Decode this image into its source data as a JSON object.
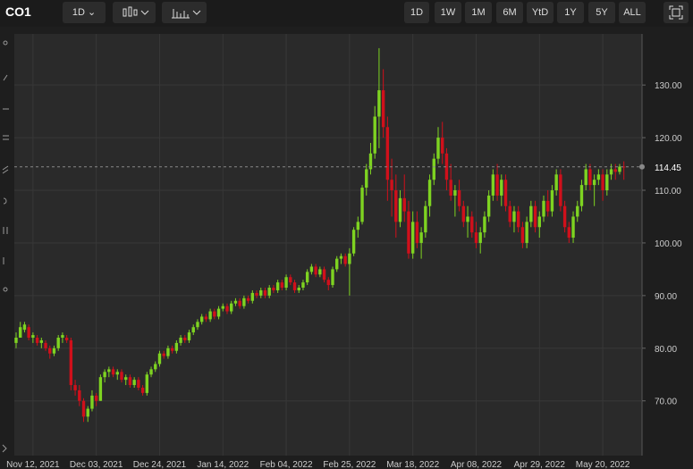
{
  "toolbar": {
    "symbol": "CO1",
    "interval": "1D",
    "ranges": [
      "1D",
      "1W",
      "1M",
      "6M",
      "YtD",
      "1Y",
      "5Y",
      "ALL"
    ]
  },
  "chart_data": {
    "type": "candlestick",
    "up_color": "#7ed321",
    "down_color": "#d0101b",
    "grid": true,
    "ylim": [
      59.6,
      139.7
    ],
    "yticks": [
      {
        "value": 70,
        "label": "70.00"
      },
      {
        "value": 80,
        "label": "80.00"
      },
      {
        "value": 90,
        "label": "90.00"
      },
      {
        "value": 100,
        "label": "100.00"
      },
      {
        "value": 110,
        "label": "110.00"
      },
      {
        "value": 120,
        "label": "120.00"
      },
      {
        "value": 130,
        "label": "130.00"
      }
    ],
    "xticks": [
      {
        "value": 4,
        "label": "Nov 12, 2021"
      },
      {
        "value": 19,
        "label": "Dec 03, 2021"
      },
      {
        "value": 34,
        "label": "Dec 24, 2021"
      },
      {
        "value": 49,
        "label": "Jan 14, 2022"
      },
      {
        "value": 64,
        "label": "Feb 04, 2022"
      },
      {
        "value": 79,
        "label": "Feb 25, 2022"
      },
      {
        "value": 94,
        "label": "Mar 18, 2022"
      },
      {
        "value": 109,
        "label": "Apr 08, 2022"
      },
      {
        "value": 124,
        "label": "Apr 29, 2022"
      },
      {
        "value": 139,
        "label": "May 20, 2022"
      }
    ],
    "ohlc": [
      [
        81,
        83,
        80,
        82
      ],
      [
        82,
        85,
        82,
        84
      ],
      [
        83.5,
        85,
        83,
        84.5
      ],
      [
        84,
        84.5,
        81.5,
        82
      ],
      [
        82,
        83,
        81,
        82.5
      ],
      [
        82,
        82.5,
        80.5,
        81
      ],
      [
        81,
        82,
        80,
        81.5
      ],
      [
        81,
        81.5,
        79.5,
        80
      ],
      [
        80,
        80.5,
        78,
        79
      ],
      [
        79,
        80.5,
        78.5,
        80
      ],
      [
        80,
        82.5,
        79.5,
        82
      ],
      [
        82,
        83,
        81,
        82.5
      ],
      [
        82,
        82.5,
        81,
        81.5
      ],
      [
        81.5,
        82,
        72,
        73
      ],
      [
        73,
        74,
        71,
        72
      ],
      [
        72,
        73,
        69,
        70
      ],
      [
        70,
        70.5,
        66,
        67
      ],
      [
        67,
        69,
        66,
        68.5
      ],
      [
        68.5,
        72,
        68,
        71
      ],
      [
        71,
        71.5,
        69,
        70
      ],
      [
        70,
        75,
        70,
        74.5
      ],
      [
        74.5,
        76,
        73.5,
        75.5
      ],
      [
        75.5,
        76.5,
        74.5,
        76
      ],
      [
        76,
        76.5,
        74.5,
        75
      ],
      [
        75,
        76,
        74,
        75.5
      ],
      [
        75.5,
        76,
        73.5,
        74
      ],
      [
        74,
        75,
        73,
        74.5
      ],
      [
        74.5,
        75,
        72.5,
        73
      ],
      [
        73,
        74.5,
        72.5,
        74
      ],
      [
        74,
        74.5,
        72,
        72.5
      ],
      [
        72.5,
        73,
        71,
        71.5
      ],
      [
        71.5,
        75.5,
        71,
        75
      ],
      [
        75,
        76.5,
        74.5,
        76
      ],
      [
        76,
        77.5,
        75.5,
        77
      ],
      [
        77,
        79.5,
        76.5,
        79
      ],
      [
        79,
        79.5,
        78,
        78.5
      ],
      [
        78.5,
        80.5,
        78,
        80
      ],
      [
        80,
        80.5,
        79,
        79.5
      ],
      [
        79.5,
        81.5,
        79,
        81
      ],
      [
        81,
        82.5,
        80.5,
        82
      ],
      [
        82,
        82.5,
        81,
        81.5
      ],
      [
        81.5,
        83.5,
        81,
        83
      ],
      [
        83,
        84.5,
        82.5,
        84
      ],
      [
        84,
        85.5,
        83.5,
        85
      ],
      [
        85,
        86.5,
        84.5,
        86
      ],
      [
        86,
        86.5,
        85,
        85.5
      ],
      [
        85.5,
        87.5,
        85,
        87
      ],
      [
        87,
        87.5,
        85.5,
        86
      ],
      [
        86,
        88,
        85.5,
        87.5
      ],
      [
        87.5,
        88.5,
        87,
        88
      ],
      [
        88,
        88.5,
        86.5,
        87
      ],
      [
        87,
        89,
        86.5,
        88.5
      ],
      [
        88.5,
        89.5,
        88,
        89
      ],
      [
        89,
        89.5,
        87.5,
        88
      ],
      [
        88,
        90,
        87.5,
        89.5
      ],
      [
        89.5,
        90,
        88.5,
        89
      ],
      [
        89,
        91,
        88.5,
        90.5
      ],
      [
        90.5,
        91,
        89.5,
        90
      ],
      [
        90,
        91.5,
        89.5,
        91
      ],
      [
        91,
        91.5,
        89.5,
        90
      ],
      [
        90,
        92,
        89.5,
        91.5
      ],
      [
        91.5,
        92,
        90.5,
        91
      ],
      [
        91,
        93,
        90.5,
        92.5
      ],
      [
        92.5,
        93,
        91,
        91.5
      ],
      [
        91.5,
        94,
        91,
        93.5
      ],
      [
        93.5,
        94,
        92,
        92.5
      ],
      [
        92.5,
        93,
        90.5,
        91
      ],
      [
        91,
        92,
        90.5,
        91.5
      ],
      [
        91.5,
        93,
        91,
        92.5
      ],
      [
        92.5,
        95,
        92,
        94.5
      ],
      [
        94.5,
        96,
        94,
        95.5
      ],
      [
        95.5,
        96,
        93.5,
        94
      ],
      [
        94,
        95.5,
        93.5,
        95
      ],
      [
        95,
        95.5,
        92.5,
        93
      ],
      [
        93,
        93.5,
        91,
        92
      ],
      [
        92,
        95.5,
        91.5,
        95
      ],
      [
        95,
        97.5,
        94.5,
        97
      ],
      [
        97,
        98,
        96,
        97.5
      ],
      [
        97.5,
        98,
        95.5,
        96
      ],
      [
        96,
        99,
        90,
        98
      ],
      [
        98,
        103,
        97.5,
        102.5
      ],
      [
        102.5,
        105,
        101,
        104
      ],
      [
        104,
        111,
        103.5,
        110.5
      ],
      [
        110.5,
        115,
        109,
        114
      ],
      [
        114,
        119,
        113,
        117
      ],
      [
        117,
        126,
        116,
        124
      ],
      [
        124,
        137,
        118,
        129
      ],
      [
        129,
        133,
        120,
        122
      ],
      [
        122,
        124,
        108,
        112
      ],
      [
        112,
        116,
        105,
        110
      ],
      [
        110,
        113,
        101,
        104
      ],
      [
        104,
        110,
        103,
        108.5
      ],
      [
        108.5,
        113,
        104,
        106
      ],
      [
        106,
        108,
        97,
        98
      ],
      [
        98,
        106,
        97,
        104
      ],
      [
        104,
        106,
        99,
        100
      ],
      [
        100,
        103,
        97,
        102
      ],
      [
        102,
        108,
        101,
        107
      ],
      [
        107,
        113,
        105,
        112
      ],
      [
        112,
        117,
        111,
        116
      ],
      [
        116,
        122,
        115,
        120
      ],
      [
        120,
        123,
        115,
        117
      ],
      [
        117,
        118,
        110,
        112
      ],
      [
        112,
        115,
        108,
        109
      ],
      [
        109,
        111,
        105,
        110
      ],
      [
        110,
        112,
        106,
        107
      ],
      [
        107,
        108,
        103,
        104
      ],
      [
        104,
        107,
        101,
        105
      ],
      [
        105,
        106,
        101,
        102
      ],
      [
        102,
        104,
        99,
        100
      ],
      [
        100,
        103,
        98,
        102
      ],
      [
        102,
        106,
        101,
        105
      ],
      [
        105,
        110,
        104,
        109
      ],
      [
        109,
        114,
        108,
        113
      ],
      [
        113,
        115,
        108,
        109
      ],
      [
        109,
        113,
        107,
        112
      ],
      [
        112,
        113,
        106,
        107
      ],
      [
        107,
        108,
        103,
        104
      ],
      [
        104,
        107,
        102,
        106
      ],
      [
        106,
        107,
        102,
        103
      ],
      [
        103,
        104,
        99,
        100
      ],
      [
        100,
        105,
        99,
        104
      ],
      [
        104,
        108,
        103,
        107
      ],
      [
        107,
        108,
        102,
        103
      ],
      [
        103,
        106,
        101,
        105
      ],
      [
        105,
        109,
        104,
        108
      ],
      [
        108,
        110,
        105,
        106
      ],
      [
        106,
        111,
        105,
        110
      ],
      [
        110,
        114,
        109,
        113
      ],
      [
        113,
        114,
        106,
        107
      ],
      [
        107,
        108,
        102,
        103
      ],
      [
        103,
        104,
        100,
        101
      ],
      [
        101,
        106,
        100,
        105
      ],
      [
        105,
        108,
        104,
        107
      ],
      [
        107,
        112,
        106,
        111
      ],
      [
        111,
        115,
        110,
        114
      ],
      [
        114,
        115,
        110,
        111
      ],
      [
        111,
        113,
        107,
        112
      ],
      [
        112,
        114,
        111,
        113
      ],
      [
        113,
        114,
        108,
        110
      ],
      [
        110,
        114,
        109,
        113
      ],
      [
        113,
        115,
        112,
        114
      ],
      [
        114,
        115,
        112,
        113.5
      ],
      [
        113.5,
        115,
        113,
        114.5
      ],
      [
        114.5,
        115.5,
        112,
        114.45
      ]
    ]
  }
}
